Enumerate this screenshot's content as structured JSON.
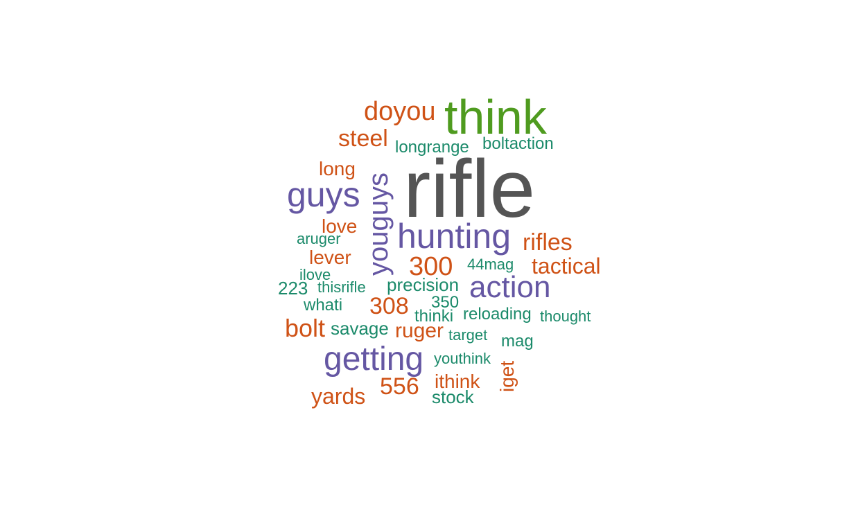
{
  "colors": {
    "dark": "#555555",
    "green": "#4f9b1f",
    "orange": "#cf5216",
    "purple": "#6557a3",
    "teal": "#1b8a6a"
  },
  "words": {
    "rifle": "rifle",
    "think": "think",
    "doyou": "doyou",
    "steel": "steel",
    "longrange": "longrange",
    "boltaction": "boltaction",
    "long": "long",
    "guys": "guys",
    "youguys": "youguys",
    "love": "love",
    "hunting": "hunting",
    "rifles": "rifles",
    "aruger": "aruger",
    "lever": "lever",
    "n300": "300",
    "mag44": "44mag",
    "tactical": "tactical",
    "ilove": "ilove",
    "n223": "223",
    "thisrifle": "thisrifle",
    "precision": "precision",
    "action": "action",
    "whati": "whati",
    "n308": "308",
    "n350": "350",
    "thinki": "thinki",
    "reloading": "reloading",
    "thought": "thought",
    "bolt": "bolt",
    "savage": "savage",
    "ruger": "ruger",
    "target": "target",
    "mag": "mag",
    "getting": "getting",
    "youthink": "youthink",
    "iget": "iget",
    "n556": "556",
    "ithink": "ithink",
    "yards": "yards",
    "stock": "stock"
  }
}
